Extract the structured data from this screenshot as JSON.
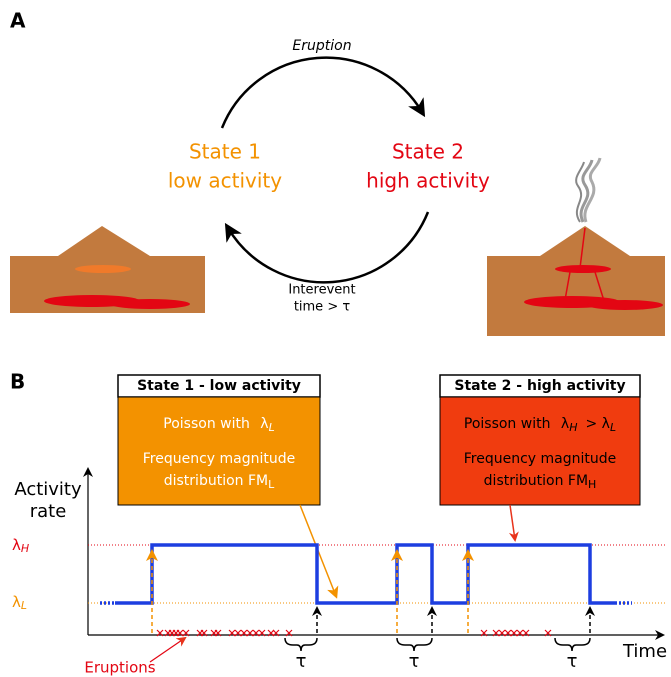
{
  "panel_a": {
    "label": "A",
    "top_arrow": "Eruption",
    "state_1": {
      "name": "State 1",
      "desc": "low activity"
    },
    "state_2": {
      "name": "State 2",
      "desc": "high activity"
    },
    "bottom_arrow": [
      "Interevent",
      "time > τ"
    ]
  },
  "panel_b": {
    "label": "B",
    "box_1": {
      "title": "State 1 - low activity",
      "line_1": "Poisson with",
      "lambda": "λ",
      "lambda_sub": "L",
      "line_2": "Frequency magnitude",
      "line_3": "distribution FM",
      "line_3_sub": "L"
    },
    "box_2": {
      "title": "State 2 - high activity",
      "line_1": "Poisson with",
      "lambda": "λ",
      "lambda_sub": "H",
      "compare": ">",
      "lambda_2": "λ",
      "lambda_2_sub": "L",
      "line_2": "Frequency magnitude",
      "line_3": "distribution FM",
      "line_3_sub": "H"
    },
    "y_axis": [
      "Activity",
      "rate"
    ],
    "level_high": {
      "symbol": "λ",
      "sub": "H"
    },
    "level_low": {
      "symbol": "λ",
      "sub": "L"
    },
    "x_axis": "Time",
    "eruptions": "Eruptions",
    "tau": [
      "τ",
      "τ",
      "τ"
    ]
  }
}
